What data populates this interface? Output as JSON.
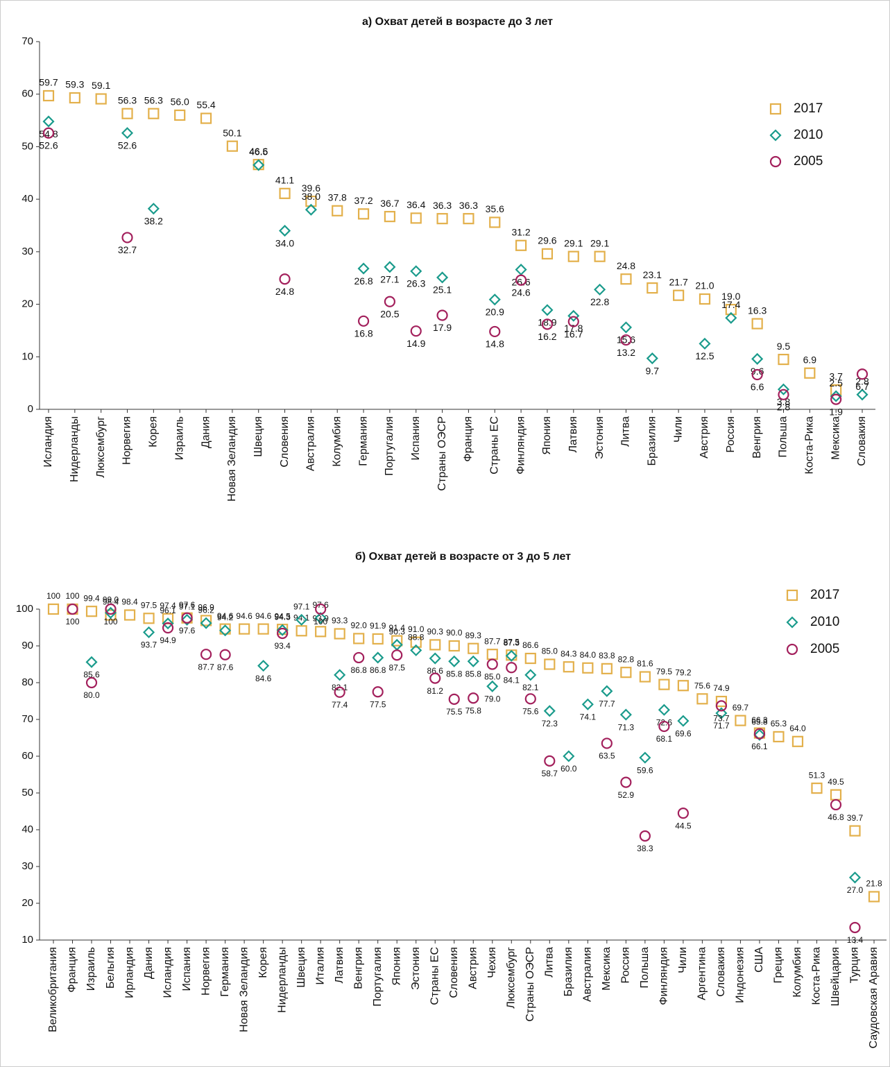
{
  "chart_data": [
    {
      "type": "scatter",
      "title": "а) Охват детей в возрасте до 3 лет",
      "categories": [
        "Исландия",
        "Нидерланды",
        "Люксембург",
        "Норвегия",
        "Корея",
        "Израиль",
        "Дания",
        "Новая Зеландия",
        "Швеция",
        "Словения",
        "Австралия",
        "Колумбия",
        "Германия",
        "Португалия",
        "Испания",
        "Страны ОЭСР",
        "Франция",
        "Страны ЕС",
        "Финляндия",
        "Япония",
        "Латвия",
        "Эстония",
        "Литва",
        "Бразилия",
        "Чили",
        "Австрия",
        "Россия",
        "Венгрия",
        "Польша",
        "Коста-Рика",
        "Мексика",
        "Словакия"
      ],
      "ylim": [
        0,
        70
      ],
      "yticks": [
        0,
        10,
        20,
        30,
        40,
        50,
        60,
        70
      ],
      "series": [
        {
          "name": "2017",
          "color": "#e3b04b",
          "marker": "square",
          "values": [
            59.7,
            59.3,
            59.1,
            56.3,
            56.3,
            56.0,
            55.4,
            50.1,
            46.6,
            41.1,
            39.6,
            37.8,
            37.2,
            36.7,
            36.4,
            36.3,
            36.3,
            35.6,
            31.2,
            29.6,
            29.1,
            29.1,
            24.8,
            23.1,
            21.7,
            21.0,
            19.0,
            16.3,
            9.5,
            6.9,
            3.7,
            null
          ],
          "value_labels": [
            "59.7",
            "59.3",
            "59.1",
            "56.3",
            "56.3",
            "56.0",
            "55.4",
            "50.1",
            "46.6",
            "41.1",
            "39.6",
            "37.8",
            "37.2",
            "36.7",
            "36.4",
            "36.3",
            "36.3",
            "35.6",
            "31.2",
            "29.6",
            "29.1",
            "29.1",
            "24.8",
            "23.1",
            "21.7",
            "21.0",
            "19.0",
            "16.3",
            "9.5",
            "6.9",
            "3.7",
            null
          ]
        },
        {
          "name": "2010",
          "color": "#1a9b8c",
          "marker": "diamond",
          "values": [
            54.8,
            null,
            null,
            52.6,
            38.2,
            null,
            null,
            null,
            46.5,
            34.0,
            38.0,
            null,
            26.8,
            27.1,
            26.3,
            25.1,
            null,
            20.9,
            26.6,
            18.9,
            17.8,
            22.8,
            15.6,
            9.7,
            null,
            12.5,
            17.4,
            9.6,
            3.8,
            null,
            2.5,
            2.8
          ],
          "value_labels": [
            "54.8",
            null,
            null,
            "52.6",
            "38.2",
            null,
            null,
            null,
            "46.5",
            "34.0",
            "38.0",
            null,
            "26.8",
            "27.1",
            "26.3",
            "25.1",
            null,
            "20.9",
            "26.6",
            "18.9",
            "17.8",
            "22.8",
            "15.6",
            "9.7",
            null,
            "12.5",
            "17.4",
            "9.6",
            "3.8",
            null,
            "2.5",
            "2.8"
          ]
        },
        {
          "name": "2005",
          "color": "#a3205c",
          "marker": "circle",
          "values": [
            52.6,
            null,
            null,
            32.7,
            null,
            null,
            null,
            null,
            null,
            24.8,
            null,
            null,
            16.8,
            20.5,
            14.9,
            17.9,
            null,
            14.8,
            24.6,
            16.2,
            16.7,
            null,
            13.2,
            null,
            null,
            null,
            null,
            6.6,
            2.8,
            null,
            1.9,
            6.7
          ],
          "value_labels": [
            "52.6",
            null,
            null,
            "32.7",
            null,
            null,
            null,
            null,
            null,
            "24.8",
            null,
            null,
            "16.8",
            "20.5",
            "14.9",
            "17.9",
            null,
            "14.8",
            "24.6",
            "16.2",
            "16.7",
            null,
            "13.2",
            null,
            null,
            null,
            null,
            "6.6",
            "2.8",
            null,
            "1.9",
            "6.7"
          ]
        }
      ]
    },
    {
      "type": "scatter",
      "title": "б) Охват детей в возрасте от 3 до 5 лет",
      "categories": [
        "Великобритания",
        "Франция",
        "Израиль",
        "Бельгия",
        "Ирландия",
        "Дания",
        "Исландия",
        "Испания",
        "Норвегия",
        "Германия",
        "Новая Зеландия",
        "Корея",
        "Нидерланды",
        "Швеция",
        "Италия",
        "Латвия",
        "Венгрия",
        "Португалия",
        "Япония",
        "Эстония",
        "Страны ЕС",
        "Словения",
        "Австрия",
        "Чехия",
        "Люксембург",
        "Страны ОЭСР",
        "Литва",
        "Бразилия",
        "Австралия",
        "Мексика",
        "Россия",
        "Польша",
        "Финляндия",
        "Чили",
        "Аргентина",
        "Словакия",
        "Индонезия",
        "США",
        "Греция",
        "Колумбия",
        "Коста-Рика",
        "Швейцария",
        "Турция",
        "Саудовская Аравия"
      ],
      "ylim": [
        10,
        100
      ],
      "yticks": [
        10,
        20,
        30,
        40,
        50,
        60,
        70,
        80,
        90,
        100
      ],
      "series": [
        {
          "name": "2017",
          "color": "#e3b04b",
          "marker": "square",
          "values": [
            100,
            100,
            99.4,
            98.4,
            98.4,
            97.5,
            97.4,
            97.6,
            96.9,
            94.6,
            94.6,
            94.6,
            94.5,
            94.1,
            93.9,
            93.3,
            92.0,
            91.9,
            91.4,
            91.0,
            90.3,
            90.0,
            89.3,
            87.7,
            87.5,
            86.6,
            85.0,
            84.3,
            84.0,
            83.8,
            82.8,
            81.6,
            79.5,
            79.2,
            75.6,
            74.9,
            69.7,
            66.3,
            65.3,
            64.0,
            51.3,
            49.5,
            39.7,
            21.8
          ],
          "value_labels": [
            "100",
            "100",
            "99.4",
            "98.4",
            "98.4",
            "97.5",
            "97.4",
            "97.6",
            "96.9",
            "94.6",
            "94.6",
            "94.6",
            "94.5",
            "94.1",
            "93.9",
            "93.3",
            "92.0",
            "91.9",
            "91.4",
            "91.0",
            "90.3",
            "90.0",
            "89.3",
            "87.7",
            "87.5",
            "86.6",
            "85.0",
            "84.3",
            "84.0",
            "83.8",
            "82.8",
            "81.6",
            "79.5",
            "79.2",
            "75.6",
            "74.9",
            "69.7",
            "66.3",
            "65.3",
            "64.0",
            "51.3",
            "49.5",
            "39.7",
            "21.8"
          ]
        },
        {
          "name": "2010",
          "color": "#1a9b8c",
          "marker": "diamond",
          "values": [
            null,
            null,
            85.6,
            99.0,
            null,
            93.7,
            96.1,
            97.1,
            96.2,
            94.2,
            null,
            84.6,
            94.3,
            97.1,
            97.6,
            82.1,
            null,
            86.8,
            90.3,
            88.8,
            86.6,
            85.8,
            85.8,
            79.0,
            87.3,
            82.1,
            72.3,
            60.0,
            74.1,
            77.7,
            71.3,
            59.6,
            72.6,
            69.6,
            null,
            71.7,
            null,
            65.8,
            null,
            null,
            null,
            null,
            27.0,
            null
          ],
          "value_labels": [
            null,
            null,
            "85.6",
            "99.0",
            null,
            "93.7",
            "96.1",
            "97.1",
            "96.2",
            "94.2",
            null,
            "84.6",
            "94.3",
            "97.1",
            "97.6",
            "82.1",
            null,
            "86.8",
            "90.3",
            "88.8",
            "86.6",
            "85.8",
            "85.8",
            "79.0",
            "87.3",
            "82.1",
            "72.3",
            "60.0",
            "74.1",
            "77.7",
            "71.3",
            "59.6",
            "72.6",
            "69.6",
            null,
            "71.7",
            null,
            "65.8",
            null,
            null,
            null,
            null,
            "27.0",
            null
          ]
        },
        {
          "name": "2005",
          "color": "#a3205c",
          "marker": "circle",
          "values": [
            null,
            100,
            80.0,
            100,
            null,
            null,
            94.9,
            97.6,
            87.7,
            87.6,
            null,
            null,
            93.4,
            null,
            100,
            77.4,
            86.8,
            77.5,
            87.5,
            null,
            81.2,
            75.5,
            75.8,
            85.0,
            84.1,
            75.6,
            58.7,
            null,
            null,
            63.5,
            52.9,
            38.3,
            68.1,
            44.5,
            null,
            73.7,
            null,
            66.1,
            null,
            null,
            null,
            46.8,
            13.4,
            null
          ],
          "value_labels": [
            null,
            "100",
            "80.0",
            "100",
            null,
            null,
            "94.9",
            "97.6",
            "87.7",
            "87.6",
            null,
            null,
            "93.4",
            null,
            "100",
            "77.4",
            "86.8",
            "77.5",
            "87.5",
            null,
            "81.2",
            "75.5",
            "75.8",
            "85.0",
            "84.1",
            "75.6",
            "58.7",
            null,
            null,
            "63.5",
            "52.9",
            "38.3",
            "68.1",
            "44.5",
            null,
            "73.7",
            null,
            "66.1",
            null,
            null,
            null,
            "46.8",
            "13.4",
            null
          ]
        }
      ]
    }
  ]
}
